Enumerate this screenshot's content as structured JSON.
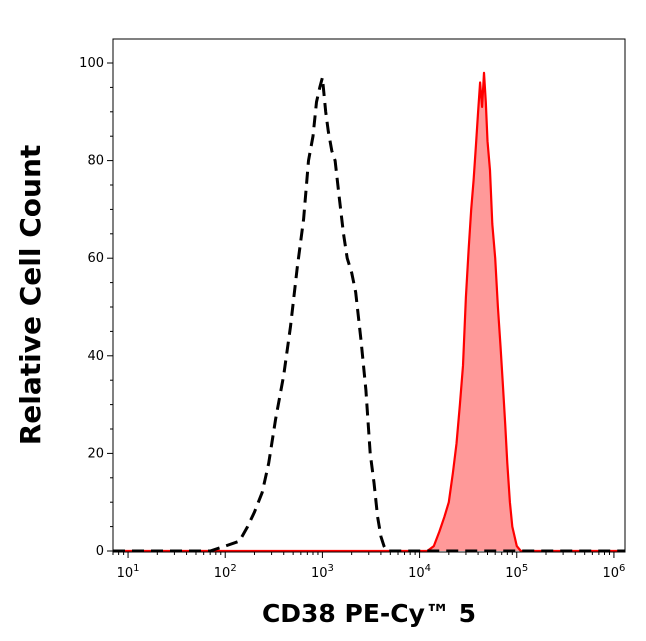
{
  "chart_data": {
    "type": "line",
    "title": "",
    "xlabel": "CD38 PE-Cy™ 5",
    "ylabel": "Relative Cell Count",
    "x_scale": "log",
    "xlim": [
      7,
      1300000
    ],
    "ylim": [
      0,
      105
    ],
    "y_ticks": [
      0,
      20,
      40,
      60,
      80,
      100
    ],
    "x_ticks": [
      {
        "base": "10",
        "exp": "1",
        "value": 10
      },
      {
        "base": "10",
        "exp": "2",
        "value": 100
      },
      {
        "base": "10",
        "exp": "3",
        "value": 1000
      },
      {
        "base": "10",
        "exp": "4",
        "value": 10000
      },
      {
        "base": "10",
        "exp": "5",
        "value": 100000
      },
      {
        "base": "10",
        "exp": "6",
        "value": 1000000
      }
    ],
    "grid": false,
    "legend": "none",
    "series": [
      {
        "style": "dashed",
        "color": "#000000",
        "fill": "none",
        "x": [
          7,
          20,
          40,
          70,
          100,
          140,
          170,
          200,
          240,
          280,
          330,
          400,
          470,
          550,
          640,
          720,
          800,
          870,
          940,
          1000,
          1080,
          1150,
          1250,
          1350,
          1500,
          1650,
          1800,
          2000,
          2200,
          2500,
          2800,
          3100,
          3400,
          3700,
          4000,
          4300,
          4600,
          5000,
          6000,
          10000,
          1300000
        ],
        "y": [
          0,
          0,
          0,
          0,
          1,
          2,
          5,
          8,
          12,
          18,
          27,
          36,
          46,
          58,
          68,
          80,
          85,
          92,
          95,
          97,
          90,
          86,
          82,
          80,
          72,
          65,
          60,
          57,
          53,
          43,
          33,
          20,
          14,
          7,
          3,
          1,
          0,
          0,
          0,
          0,
          0
        ]
      },
      {
        "style": "solid",
        "color": "#ff0000",
        "fill": "#ff9999",
        "x": [
          7,
          12000,
          14000,
          16000,
          18000,
          20000,
          22000,
          24000,
          26000,
          28000,
          30000,
          32000,
          34000,
          36000,
          38000,
          40000,
          42000,
          44000,
          46000,
          48000,
          50000,
          53000,
          56000,
          60000,
          64000,
          68000,
          72000,
          76000,
          80000,
          85000,
          90000,
          100000,
          110000,
          1300000
        ],
        "y": [
          0,
          0,
          1,
          4,
          7,
          10,
          16,
          22,
          30,
          38,
          52,
          62,
          70,
          76,
          83,
          90,
          96,
          91,
          98,
          92,
          84,
          78,
          67,
          60,
          50,
          42,
          34,
          26,
          18,
          10,
          5,
          1,
          0,
          0
        ]
      }
    ]
  }
}
